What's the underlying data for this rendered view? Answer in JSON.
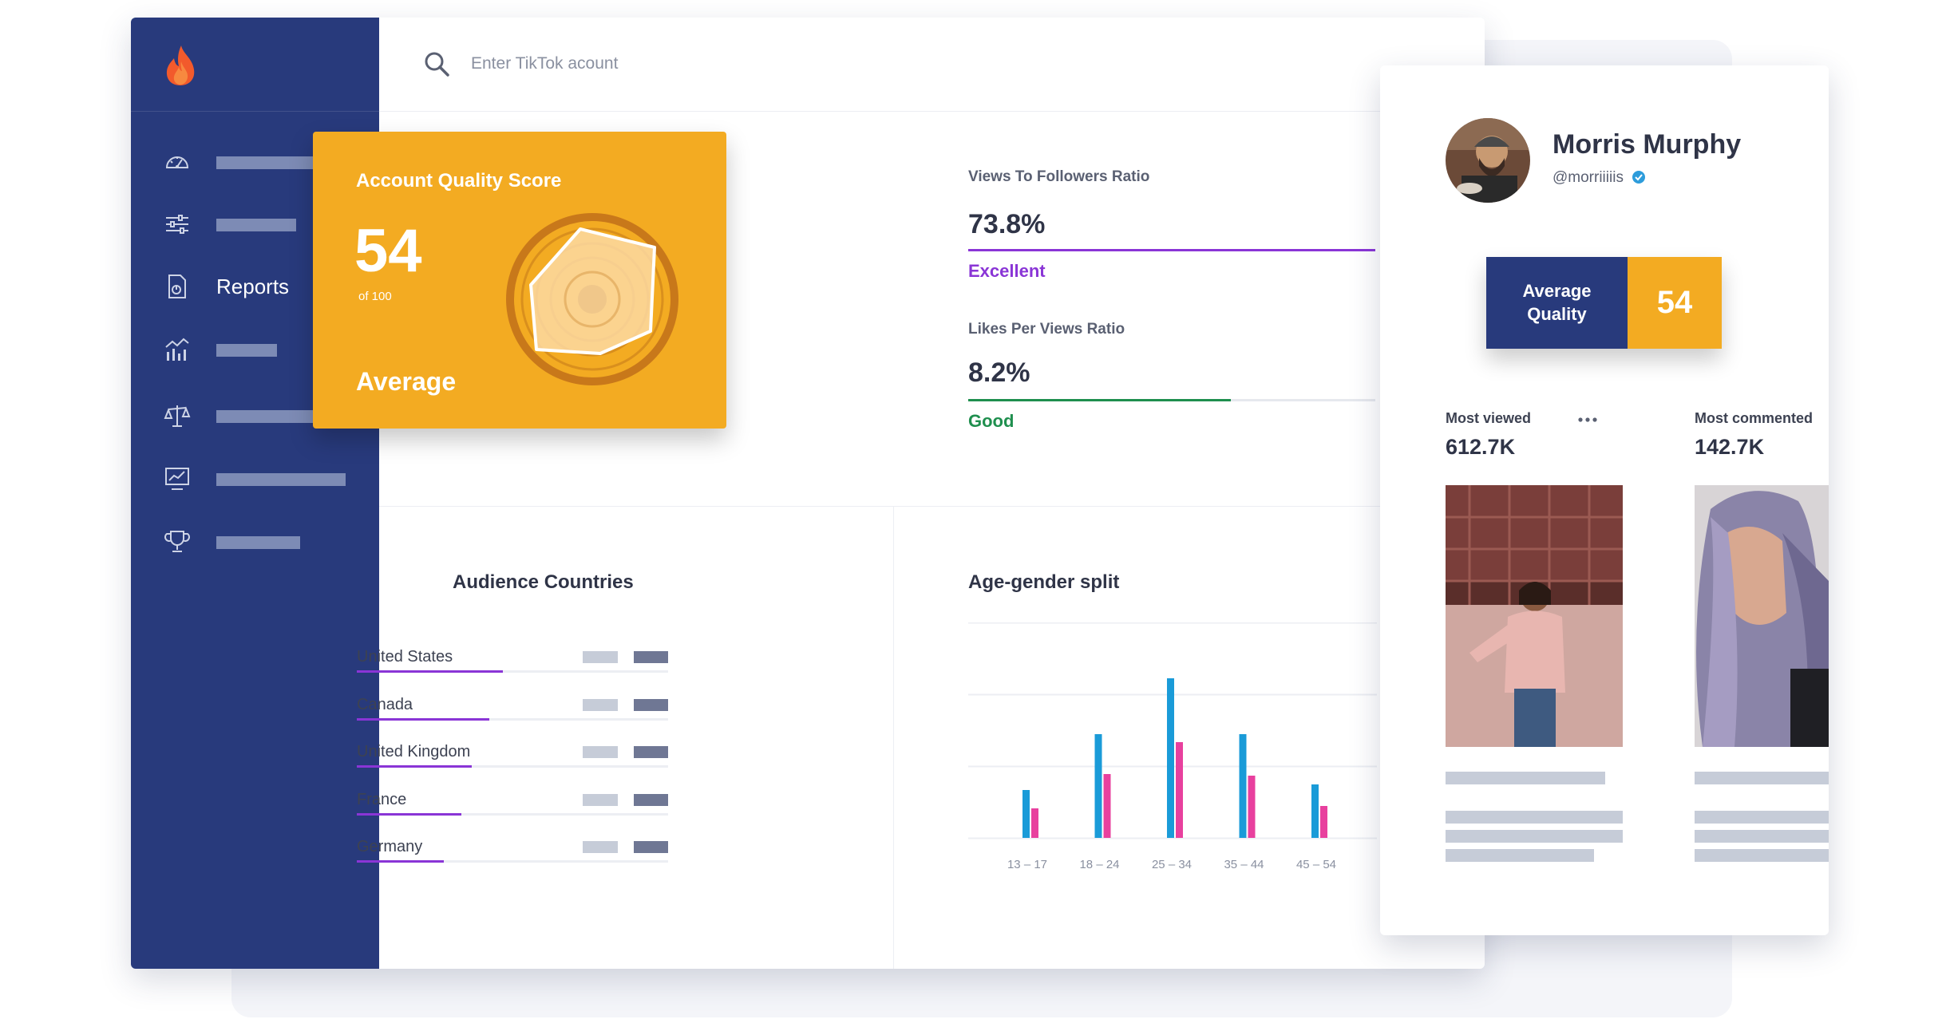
{
  "search": {
    "placeholder": "Enter TikTok acount",
    "icon": "search-icon"
  },
  "sidebar": {
    "brand_icon": "flame-icon",
    "active_label": "Reports",
    "items": [
      {
        "icon": "dashboard-icon"
      },
      {
        "icon": "sliders-icon"
      },
      {
        "icon": "report-file-icon",
        "label": "Reports"
      },
      {
        "icon": "bar-chart-icon"
      },
      {
        "icon": "balance-scale-icon"
      },
      {
        "icon": "monitor-chart-icon"
      },
      {
        "icon": "trophy-icon"
      }
    ]
  },
  "score": {
    "title": "Account Quality Score",
    "value": "54",
    "of": "of 100",
    "verdict": "Average"
  },
  "metrics": [
    {
      "label": "Views To Followers Ratio",
      "value": "73.8%",
      "rating": "Excellent",
      "color": "#8a35d6",
      "fill": 1.0
    },
    {
      "label": "Likes Per Views Ratio",
      "value": "8.2%",
      "rating": "Good",
      "color": "#1f8f4e",
      "fill": 0.646
    }
  ],
  "audience": {
    "title": "Audience Countries",
    "countries": [
      {
        "name": "United States",
        "fill": 0.47
      },
      {
        "name": "Canada",
        "fill": 0.425
      },
      {
        "name": "United Kingdom",
        "fill": 0.37
      },
      {
        "name": "France",
        "fill": 0.335
      },
      {
        "name": "Germany",
        "fill": 0.28
      }
    ]
  },
  "chart_data": {
    "type": "bar",
    "title": "Age-gender split",
    "categories": [
      "13 – 17",
      "18 – 24",
      "25 – 34",
      "35 – 44",
      "45 – 54"
    ],
    "series": [
      {
        "color": "#1a9bd8",
        "values": [
          6,
          13,
          20,
          13,
          6.7
        ]
      },
      {
        "color": "#e8409e",
        "values": [
          3.7,
          8,
          12,
          7.8,
          4
        ]
      }
    ],
    "ylim": [
      0,
      27
    ],
    "grid": true
  },
  "profile": {
    "name": "Morris Murphy",
    "handle": "@morriiiiis",
    "verified_icon": "verified-check-icon",
    "quality_label_1": "Average",
    "quality_label_2": "Quality",
    "quality_value": "54",
    "most_viewed_label": "Most viewed",
    "most_viewed_value": "612.7K",
    "most_commented_label": "Most commented",
    "most_commented_value": "142.7K",
    "more_icon": "more-horizontal-icon"
  }
}
